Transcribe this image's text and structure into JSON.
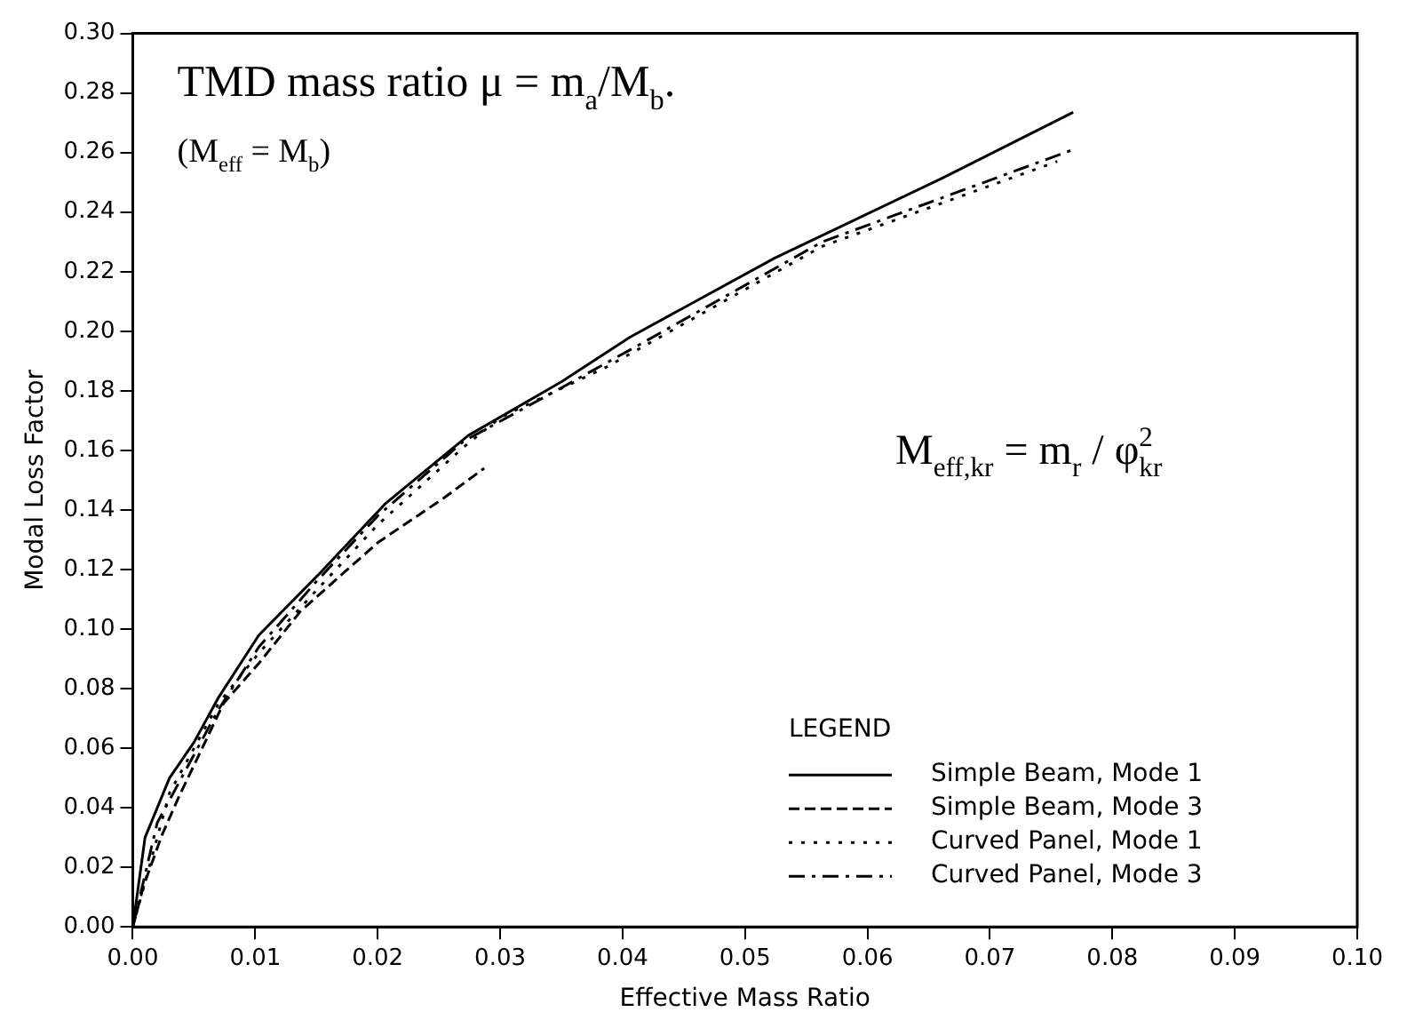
{
  "chart_data": {
    "type": "line",
    "xlabel": "Effective Mass Ratio",
    "ylabel": "Modal Loss Factor",
    "legend_title": "LEGEND",
    "legend": "bottom right",
    "grid": false,
    "marker": "none",
    "annotations": [
      {
        "text": "TMD mass ratio μ = m$_{a}$/M$_{b}$."
      },
      {
        "text": "(M$_{eff}$ = M$_{b}$)"
      },
      {
        "text": "M$_{eff,kr}$ = m$_{r}$ / φ$^{2}$$_{kr}$"
      }
    ],
    "xlim": [
      0,
      0.1
    ],
    "ylim": [
      0,
      0.3
    ],
    "xticks": [
      {
        "value": 0,
        "label": "0.00"
      },
      {
        "value": 0.01,
        "label": "0.01"
      },
      {
        "value": 0.02,
        "label": "0.02"
      },
      {
        "value": 0.03,
        "label": "0.03"
      },
      {
        "value": 0.04,
        "label": "0.04"
      },
      {
        "value": 0.05,
        "label": "0.05"
      },
      {
        "value": 0.06,
        "label": "0.06"
      },
      {
        "value": 0.07,
        "label": "0.07"
      },
      {
        "value": 0.08,
        "label": "0.08"
      },
      {
        "value": 0.09,
        "label": "0.09"
      },
      {
        "value": 0.1,
        "label": "0.10"
      }
    ],
    "yticks": [
      {
        "value": 0,
        "label": "0.00"
      },
      {
        "value": 0.02,
        "label": "0.02"
      },
      {
        "value": 0.04,
        "label": "0.04"
      },
      {
        "value": 0.06,
        "label": "0.06"
      },
      {
        "value": 0.08,
        "label": "0.08"
      },
      {
        "value": 0.1,
        "label": "0.10"
      },
      {
        "value": 0.12,
        "label": "0.12"
      },
      {
        "value": 0.14,
        "label": "0.14"
      },
      {
        "value": 0.16,
        "label": "0.16"
      },
      {
        "value": 0.18,
        "label": "0.18"
      },
      {
        "value": 0.2,
        "label": "0.20"
      },
      {
        "value": 0.22,
        "label": "0.22"
      },
      {
        "value": 0.24,
        "label": "0.24"
      },
      {
        "value": 0.26,
        "label": "0.26"
      },
      {
        "value": 0.28,
        "label": "0.28"
      },
      {
        "value": 0.3,
        "label": "0.30"
      }
    ],
    "series": [
      {
        "name": "Simple Beam, Mode 1",
        "color": "#000000",
        "line_style": "solid",
        "x": [
          0,
          0.001,
          0.003,
          0.005,
          0.007,
          0.0103,
          0.0151,
          0.0206,
          0.0274,
          0.035,
          0.0406,
          0.0524,
          0.0662,
          0.0768
        ],
        "values": [
          0,
          0.03,
          0.05,
          0.062,
          0.077,
          0.098,
          0.118,
          0.142,
          0.165,
          0.183,
          0.198,
          0.2245,
          0.2516,
          0.2735
        ]
      },
      {
        "name": "Simple Beam, Mode 3",
        "color": "#000000",
        "line_style": "dashed",
        "x": [
          0,
          0.0009,
          0.0024,
          0.0038,
          0.0059,
          0.0074,
          0.0103,
          0.0137,
          0.02,
          0.0254,
          0.0287
        ],
        "values": [
          0,
          0.014,
          0.031,
          0.044,
          0.062,
          0.075,
          0.0885,
          0.106,
          0.129,
          0.144,
          0.154
        ]
      },
      {
        "name": "Curved Panel, Mode 1",
        "color": "#000000",
        "line_style": "dotted",
        "x": [
          0,
          0.003,
          0.007,
          0.0103,
          0.015,
          0.02,
          0.027,
          0.03,
          0.0387,
          0.0563,
          0.0755
        ],
        "values": [
          0,
          0.045,
          0.075,
          0.092,
          0.113,
          0.135,
          0.161,
          0.171,
          0.188,
          0.2285,
          0.257
        ]
      },
      {
        "name": "Curved Panel, Mode 3",
        "color": "#000000",
        "line_style": "dashdot",
        "x": [
          0,
          0.002,
          0.007,
          0.0103,
          0.015,
          0.02,
          0.027,
          0.035,
          0.0416,
          0.0563,
          0.0768
        ],
        "values": [
          0,
          0.035,
          0.073,
          0.094,
          0.116,
          0.138,
          0.163,
          0.181,
          0.196,
          0.23,
          0.261
        ]
      }
    ]
  }
}
